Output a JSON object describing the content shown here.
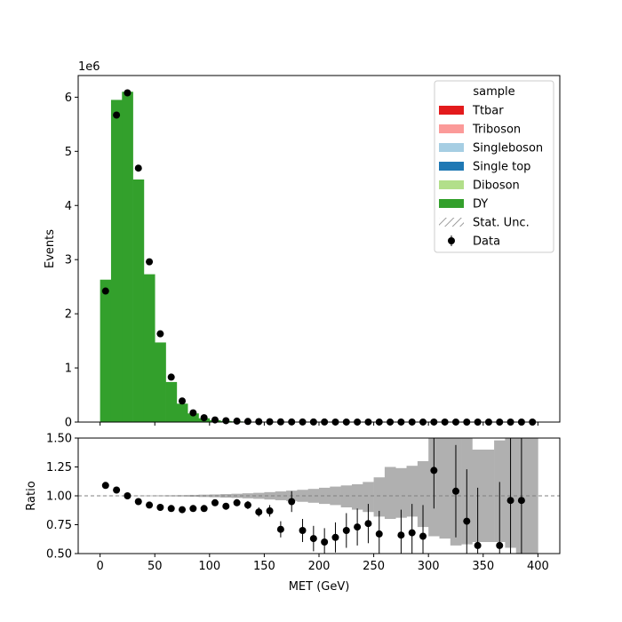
{
  "chart_data": {
    "type": "bar",
    "x_bin_centers": [
      5,
      15,
      25,
      35,
      45,
      55,
      65,
      75,
      85,
      95,
      105,
      115,
      125,
      135,
      145,
      155,
      165,
      175,
      185,
      195,
      205,
      215,
      225,
      235,
      245,
      255,
      265,
      275,
      285,
      295,
      305,
      315,
      325,
      335,
      345,
      355,
      365,
      375,
      385,
      395
    ],
    "main": {
      "ylabel": "Events",
      "yscale_label": "1e6",
      "ylim": [
        0,
        6.4
      ],
      "yticks": [
        "0",
        "1",
        "2",
        "3",
        "4",
        "5",
        "6"
      ],
      "series": [
        {
          "name": "Ttbar",
          "color": "#e31a1c",
          "values": [
            0,
            0,
            0,
            0,
            0,
            0,
            0,
            0,
            0,
            0,
            0,
            0,
            0,
            0,
            0,
            0,
            0,
            0,
            0,
            0,
            0,
            0,
            0,
            0,
            0,
            0,
            0,
            0,
            0,
            0,
            0,
            0,
            0,
            0,
            0,
            0,
            0,
            0,
            0,
            0
          ]
        },
        {
          "name": "Triboson",
          "color": "#fb9a99",
          "values": [
            0,
            0,
            0,
            0,
            0,
            0,
            0,
            0,
            0,
            0,
            0,
            0,
            0,
            0,
            0,
            0,
            0,
            0,
            0,
            0,
            0,
            0,
            0,
            0,
            0,
            0,
            0,
            0,
            0,
            0,
            0,
            0,
            0,
            0,
            0,
            0,
            0,
            0,
            0,
            0
          ]
        },
        {
          "name": "Singleboson",
          "color": "#a6cee3",
          "values": [
            0,
            0,
            0,
            0,
            0,
            0,
            0,
            0,
            0,
            0,
            0,
            0,
            0,
            0,
            0,
            0,
            0,
            0,
            0,
            0,
            0,
            0,
            0,
            0,
            0,
            0,
            0,
            0,
            0,
            0,
            0,
            0,
            0,
            0,
            0,
            0,
            0,
            0,
            0,
            0
          ]
        },
        {
          "name": "Single top",
          "color": "#1f78b4",
          "values": [
            0,
            0,
            0,
            0,
            0,
            0,
            0,
            0,
            0,
            0,
            0,
            0,
            0,
            0,
            0,
            0,
            0,
            0,
            0,
            0,
            0,
            0,
            0,
            0,
            0,
            0,
            0,
            0,
            0,
            0,
            0,
            0,
            0,
            0,
            0,
            0,
            0,
            0,
            0,
            0
          ]
        },
        {
          "name": "Diboson",
          "color": "#b2df8a",
          "values": [
            0,
            0,
            0,
            0,
            0,
            0,
            0,
            0,
            0,
            0,
            0,
            0,
            0,
            0,
            0,
            0,
            0,
            0,
            0,
            0,
            0,
            0,
            0,
            0,
            0,
            0,
            0,
            0,
            0,
            0,
            0,
            0,
            0,
            0,
            0,
            0,
            0,
            0,
            0,
            0
          ]
        },
        {
          "name": "DY",
          "color": "#33a02c",
          "values": [
            2.63,
            5.95,
            6.1,
            4.48,
            2.73,
            1.47,
            0.74,
            0.34,
            0.16,
            0.07,
            0.035,
            0.02,
            0.012,
            0.007,
            0.005,
            0.003,
            0.002,
            0.0015,
            0.001,
            0.001,
            0.0008,
            0.0006,
            0.0005,
            0.0004,
            0.0003,
            0.0003,
            0.0002,
            0.0002,
            0.0002,
            0.0001,
            0.0001,
            0.0001,
            0.0001,
            0.0001,
            0.0001,
            0.0001,
            0.0001,
            0.0001,
            0.0001,
            0.0001
          ]
        }
      ],
      "data": {
        "name": "Data",
        "values": [
          2.42,
          5.67,
          6.08,
          4.69,
          2.96,
          1.63,
          0.83,
          0.39,
          0.17,
          0.08,
          0.04,
          0.025,
          0.018,
          0.012,
          0.008,
          0.006,
          0.004,
          0.003,
          0.002,
          0.002,
          0.0015,
          0.001,
          0.001,
          0.001,
          0.0008,
          0.0007,
          0.0006,
          0.0005,
          0.0004,
          0.0004,
          0.0003,
          0.0003,
          0.0003,
          0.0002,
          0.0002,
          0.0002,
          0.0002,
          0.0002,
          0.0002,
          0.0002
        ]
      },
      "stat_unc_name": "Stat. Unc."
    },
    "ratio": {
      "ylabel": "Ratio",
      "ylim": [
        0.5,
        1.5
      ],
      "yticks": [
        "0.50",
        "0.75",
        "1.00",
        "1.25",
        "1.50"
      ],
      "reference_line": 1.0,
      "values": [
        1.09,
        1.05,
        1.0,
        0.95,
        0.92,
        0.9,
        0.89,
        0.88,
        0.89,
        0.89,
        0.94,
        0.91,
        0.94,
        0.92,
        0.86,
        0.87,
        0.71,
        0.95,
        0.7,
        0.63,
        0.6,
        0.64,
        0.7,
        0.73,
        0.76,
        0.67,
        null,
        0.66,
        0.68,
        0.65,
        1.22,
        null,
        1.04,
        0.78,
        0.57,
        null,
        0.57,
        0.96,
        0.96,
        null
      ],
      "err_low": [
        0.003,
        0.002,
        0.002,
        0.002,
        0.003,
        0.003,
        0.004,
        0.006,
        0.008,
        0.012,
        0.017,
        0.022,
        0.028,
        0.035,
        0.04,
        0.05,
        0.07,
        0.09,
        0.1,
        0.11,
        0.12,
        0.13,
        0.15,
        0.16,
        0.17,
        0.2,
        0,
        0.22,
        0.25,
        0.27,
        0.33,
        0,
        0.4,
        0.45,
        0.5,
        0,
        0.55,
        0.6,
        0.6,
        0
      ],
      "err_high": [
        0.003,
        0.002,
        0.002,
        0.002,
        0.003,
        0.003,
        0.004,
        0.006,
        0.008,
        0.012,
        0.017,
        0.022,
        0.028,
        0.035,
        0.04,
        0.05,
        0.07,
        0.09,
        0.1,
        0.11,
        0.12,
        0.13,
        0.15,
        0.16,
        0.17,
        0.2,
        0,
        0.22,
        0.25,
        0.27,
        0.33,
        0,
        0.4,
        0.45,
        0.5,
        0,
        0.55,
        0.6,
        0.6,
        0
      ],
      "unc_low": [
        0.999,
        0.999,
        0.999,
        0.998,
        0.997,
        0.996,
        0.995,
        0.994,
        0.992,
        0.99,
        0.988,
        0.985,
        0.982,
        0.978,
        0.974,
        0.968,
        0.962,
        0.955,
        0.948,
        0.94,
        0.93,
        0.92,
        0.9,
        0.88,
        0.86,
        0.82,
        0.8,
        0.81,
        0.82,
        0.73,
        0.65,
        0.63,
        0.57,
        0.58,
        0.6,
        0.6,
        0.6,
        0.55,
        0.5,
        0.5
      ],
      "unc_high": [
        1.001,
        1.001,
        1.001,
        1.002,
        1.003,
        1.004,
        1.005,
        1.006,
        1.008,
        1.01,
        1.012,
        1.015,
        1.018,
        1.022,
        1.026,
        1.032,
        1.038,
        1.045,
        1.052,
        1.06,
        1.07,
        1.08,
        1.09,
        1.1,
        1.12,
        1.16,
        1.25,
        1.24,
        1.26,
        1.3,
        1.5,
        1.5,
        1.5,
        1.5,
        1.4,
        1.4,
        1.48,
        1.5,
        1.5,
        1.5
      ],
      "xlabel": "MET (GeV)"
    },
    "xlim": [
      -20,
      420
    ],
    "xticks": [
      "0",
      "50",
      "100",
      "150",
      "200",
      "250",
      "300",
      "350",
      "400"
    ],
    "legend": {
      "title": "sample",
      "placement": "top-right"
    }
  }
}
